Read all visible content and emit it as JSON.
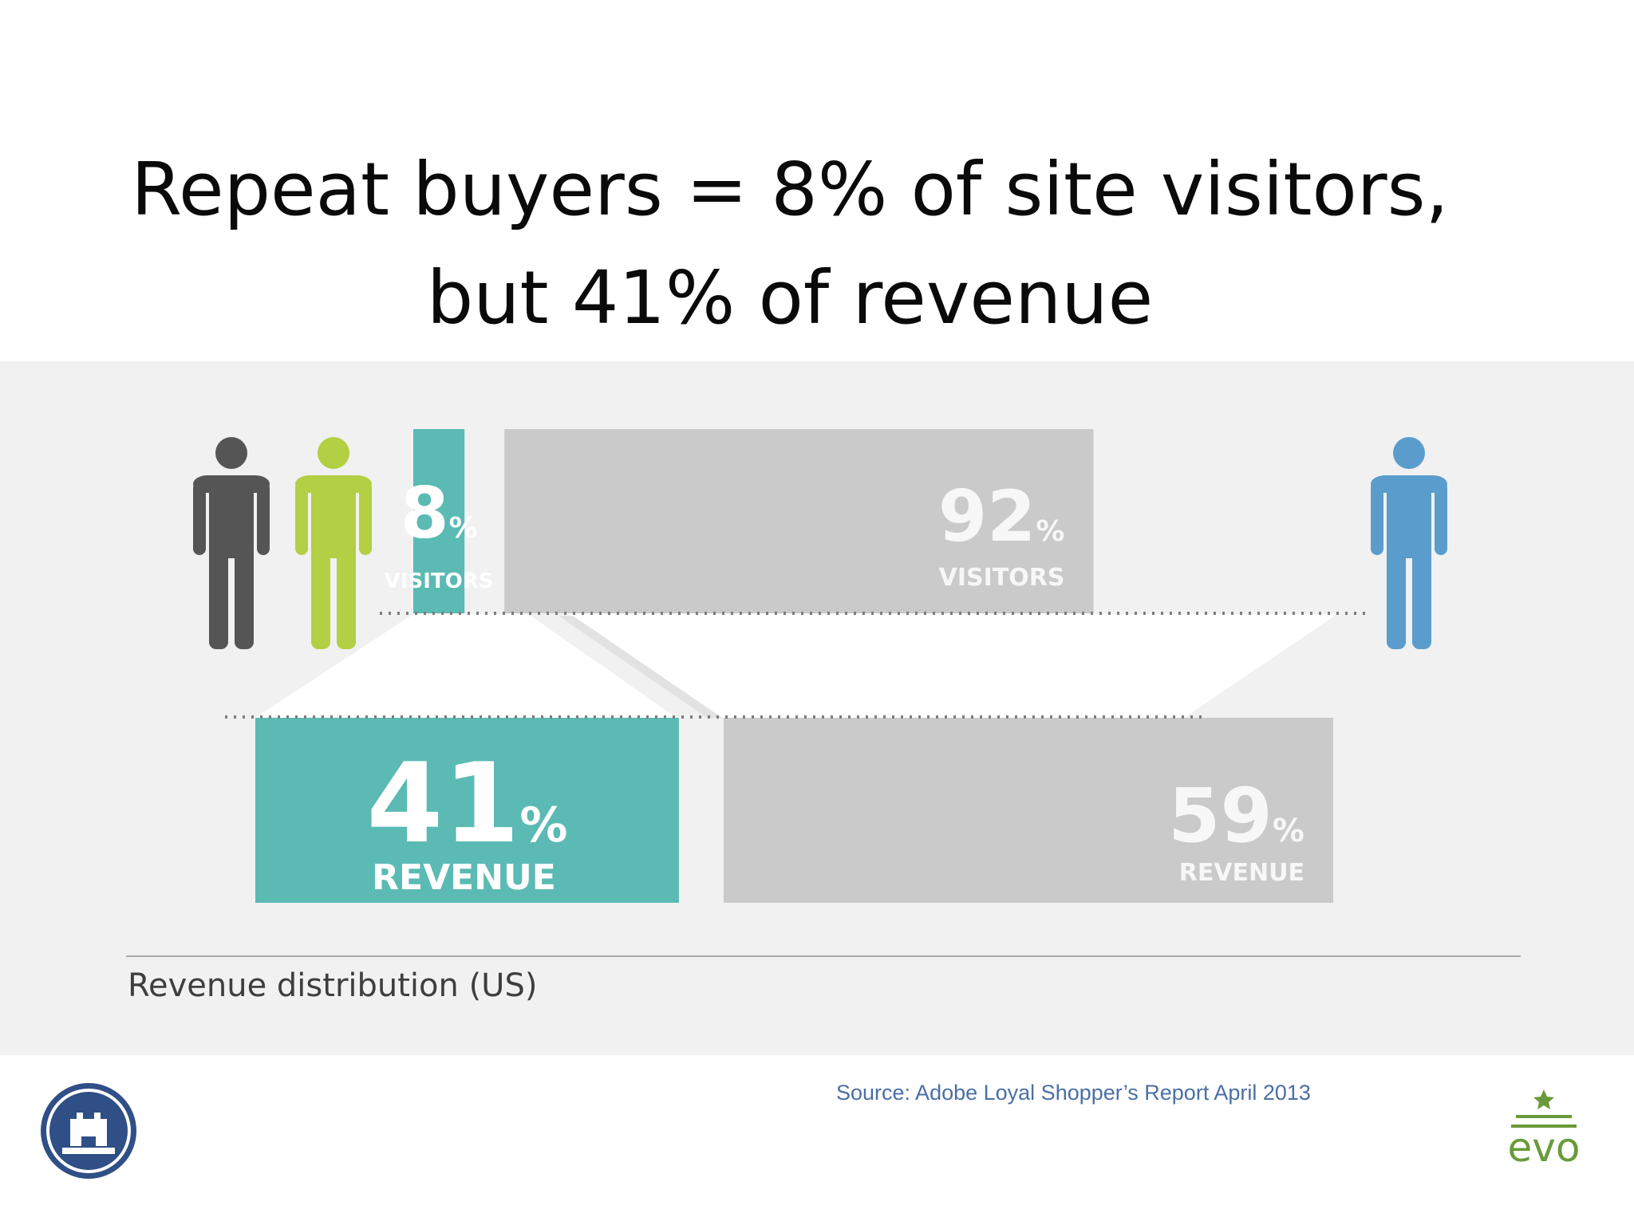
{
  "title": {
    "line1": "Repeat buyers = 8% of site visitors,",
    "line2": "but 41% of revenue"
  },
  "chart_data": {
    "type": "bar",
    "caption": "Revenue distribution (US)",
    "percent_sign": "%",
    "rows": [
      {
        "metric": "VISITORS",
        "segments": [
          {
            "value": 8,
            "color": "#5bbab4"
          },
          {
            "value": 92,
            "color": "#cacaca"
          }
        ]
      },
      {
        "metric": "REVENUE",
        "segments": [
          {
            "value": 41,
            "color": "#5bbab4"
          },
          {
            "value": 59,
            "color": "#cacaca"
          }
        ]
      }
    ]
  },
  "icons": [
    "person-icon-gray",
    "person-icon-green",
    "person-icon-blue"
  ],
  "colors": {
    "repeat": "#5bbab4",
    "other": "#cacaca",
    "person_gray": "#555555",
    "person_green": "#b3cf44",
    "person_blue": "#5a9dcc"
  },
  "source": "Source: Adobe Loyal Shopper’s Report April 2013",
  "logos": {
    "right_text": "evo"
  }
}
